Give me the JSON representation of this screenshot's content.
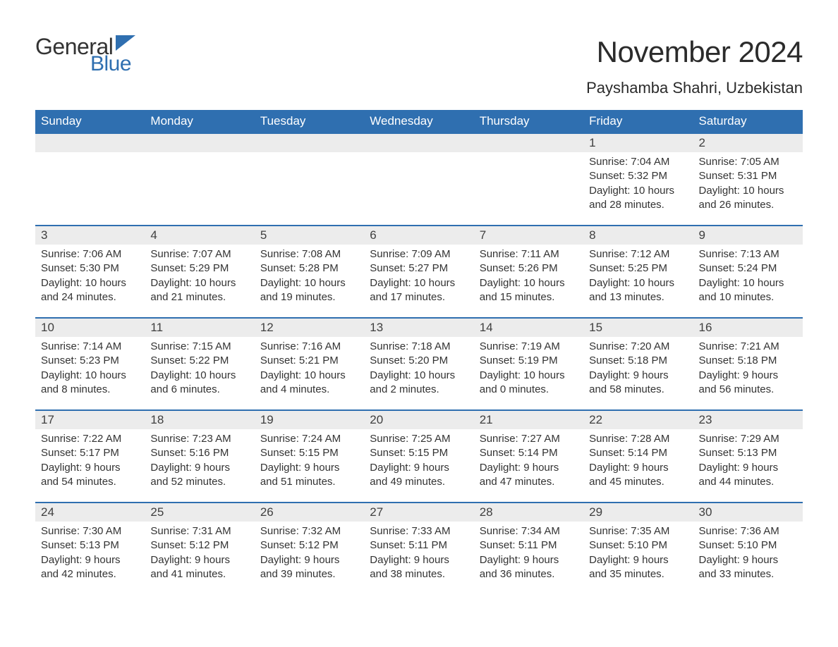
{
  "logo": {
    "word1": "General",
    "word2": "Blue",
    "flag_color": "#2f6fb0"
  },
  "title": "November 2024",
  "subtitle": "Payshamba Shahri, Uzbekistan",
  "colors": {
    "header_bg": "#2f6fb0",
    "header_text": "#ffffff",
    "daynum_bg": "#ececec",
    "row_border": "#2f6fb0",
    "text": "#333333",
    "background": "#ffffff"
  },
  "day_headers": [
    "Sunday",
    "Monday",
    "Tuesday",
    "Wednesday",
    "Thursday",
    "Friday",
    "Saturday"
  ],
  "weeks": [
    [
      null,
      null,
      null,
      null,
      null,
      {
        "n": "1",
        "sunrise": "7:04 AM",
        "sunset": "5:32 PM",
        "daylight": "10 hours and 28 minutes."
      },
      {
        "n": "2",
        "sunrise": "7:05 AM",
        "sunset": "5:31 PM",
        "daylight": "10 hours and 26 minutes."
      }
    ],
    [
      {
        "n": "3",
        "sunrise": "7:06 AM",
        "sunset": "5:30 PM",
        "daylight": "10 hours and 24 minutes."
      },
      {
        "n": "4",
        "sunrise": "7:07 AM",
        "sunset": "5:29 PM",
        "daylight": "10 hours and 21 minutes."
      },
      {
        "n": "5",
        "sunrise": "7:08 AM",
        "sunset": "5:28 PM",
        "daylight": "10 hours and 19 minutes."
      },
      {
        "n": "6",
        "sunrise": "7:09 AM",
        "sunset": "5:27 PM",
        "daylight": "10 hours and 17 minutes."
      },
      {
        "n": "7",
        "sunrise": "7:11 AM",
        "sunset": "5:26 PM",
        "daylight": "10 hours and 15 minutes."
      },
      {
        "n": "8",
        "sunrise": "7:12 AM",
        "sunset": "5:25 PM",
        "daylight": "10 hours and 13 minutes."
      },
      {
        "n": "9",
        "sunrise": "7:13 AM",
        "sunset": "5:24 PM",
        "daylight": "10 hours and 10 minutes."
      }
    ],
    [
      {
        "n": "10",
        "sunrise": "7:14 AM",
        "sunset": "5:23 PM",
        "daylight": "10 hours and 8 minutes."
      },
      {
        "n": "11",
        "sunrise": "7:15 AM",
        "sunset": "5:22 PM",
        "daylight": "10 hours and 6 minutes."
      },
      {
        "n": "12",
        "sunrise": "7:16 AM",
        "sunset": "5:21 PM",
        "daylight": "10 hours and 4 minutes."
      },
      {
        "n": "13",
        "sunrise": "7:18 AM",
        "sunset": "5:20 PM",
        "daylight": "10 hours and 2 minutes."
      },
      {
        "n": "14",
        "sunrise": "7:19 AM",
        "sunset": "5:19 PM",
        "daylight": "10 hours and 0 minutes."
      },
      {
        "n": "15",
        "sunrise": "7:20 AM",
        "sunset": "5:18 PM",
        "daylight": "9 hours and 58 minutes."
      },
      {
        "n": "16",
        "sunrise": "7:21 AM",
        "sunset": "5:18 PM",
        "daylight": "9 hours and 56 minutes."
      }
    ],
    [
      {
        "n": "17",
        "sunrise": "7:22 AM",
        "sunset": "5:17 PM",
        "daylight": "9 hours and 54 minutes."
      },
      {
        "n": "18",
        "sunrise": "7:23 AM",
        "sunset": "5:16 PM",
        "daylight": "9 hours and 52 minutes."
      },
      {
        "n": "19",
        "sunrise": "7:24 AM",
        "sunset": "5:15 PM",
        "daylight": "9 hours and 51 minutes."
      },
      {
        "n": "20",
        "sunrise": "7:25 AM",
        "sunset": "5:15 PM",
        "daylight": "9 hours and 49 minutes."
      },
      {
        "n": "21",
        "sunrise": "7:27 AM",
        "sunset": "5:14 PM",
        "daylight": "9 hours and 47 minutes."
      },
      {
        "n": "22",
        "sunrise": "7:28 AM",
        "sunset": "5:14 PM",
        "daylight": "9 hours and 45 minutes."
      },
      {
        "n": "23",
        "sunrise": "7:29 AM",
        "sunset": "5:13 PM",
        "daylight": "9 hours and 44 minutes."
      }
    ],
    [
      {
        "n": "24",
        "sunrise": "7:30 AM",
        "sunset": "5:13 PM",
        "daylight": "9 hours and 42 minutes."
      },
      {
        "n": "25",
        "sunrise": "7:31 AM",
        "sunset": "5:12 PM",
        "daylight": "9 hours and 41 minutes."
      },
      {
        "n": "26",
        "sunrise": "7:32 AM",
        "sunset": "5:12 PM",
        "daylight": "9 hours and 39 minutes."
      },
      {
        "n": "27",
        "sunrise": "7:33 AM",
        "sunset": "5:11 PM",
        "daylight": "9 hours and 38 minutes."
      },
      {
        "n": "28",
        "sunrise": "7:34 AM",
        "sunset": "5:11 PM",
        "daylight": "9 hours and 36 minutes."
      },
      {
        "n": "29",
        "sunrise": "7:35 AM",
        "sunset": "5:10 PM",
        "daylight": "9 hours and 35 minutes."
      },
      {
        "n": "30",
        "sunrise": "7:36 AM",
        "sunset": "5:10 PM",
        "daylight": "9 hours and 33 minutes."
      }
    ]
  ],
  "labels": {
    "sunrise": "Sunrise:",
    "sunset": "Sunset:",
    "daylight": "Daylight:"
  }
}
